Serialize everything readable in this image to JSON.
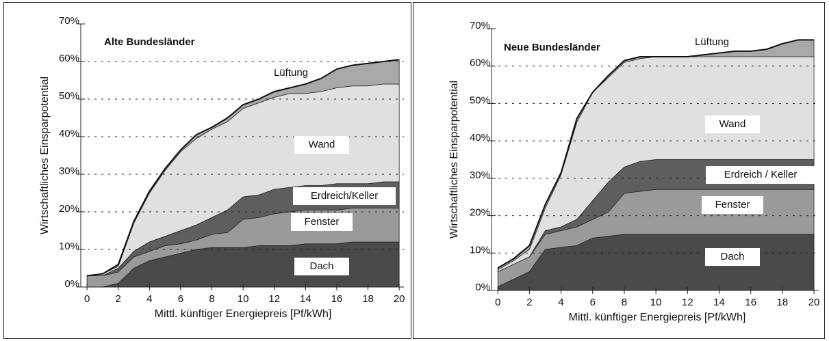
{
  "chart_data": [
    {
      "type": "area",
      "stacked": true,
      "title": "Alte Bundesländer",
      "xlabel": "Mittl. künftiger Energiepreis [Pf/kWh]",
      "ylabel": "Wirtschaftliches Einsparpotential",
      "x": [
        0,
        1,
        2,
        3,
        4,
        5,
        6,
        7,
        8,
        9,
        10,
        11,
        12,
        13,
        14,
        15,
        16,
        17,
        18,
        19,
        20
      ],
      "xlim": [
        -0.4,
        20.3
      ],
      "xticks": [
        0,
        2,
        4,
        6,
        8,
        10,
        12,
        14,
        16,
        18,
        20
      ],
      "ylim": [
        0,
        70
      ],
      "yticks": [
        {
          "value": 0,
          "label": "0%"
        },
        {
          "value": 10,
          "label": "10%"
        },
        {
          "value": 20,
          "label": "20%"
        },
        {
          "value": 30,
          "label": "30%"
        },
        {
          "value": 40,
          "label": "40%"
        },
        {
          "value": 50,
          "label": "50%"
        },
        {
          "value": 60,
          "label": "60%"
        },
        {
          "value": 70,
          "label": "70%"
        }
      ],
      "grid": true,
      "series": [
        {
          "name": "Dach",
          "color": "#4a4a4a",
          "values": [
            0,
            0,
            1,
            5,
            7,
            8,
            9,
            10,
            10.5,
            10.5,
            10.5,
            11,
            11,
            11,
            11.5,
            11.5,
            11.5,
            12,
            12,
            12,
            12
          ]
        },
        {
          "name": "Fenster",
          "color": "#9a9a9a",
          "values": [
            3,
            3,
            3,
            3,
            2.5,
            3,
            2.5,
            2.5,
            3.5,
            4,
            7.5,
            7.5,
            8.5,
            9,
            9,
            9,
            9,
            9,
            9,
            9,
            9
          ]
        },
        {
          "name": "Erdreich/Keller",
          "color": "#5e5e5e",
          "values": [
            0,
            0,
            1,
            1.5,
            2.5,
            2.5,
            3.5,
            4,
            4.5,
            6,
            6,
            6,
            6.5,
            6.5,
            6.5,
            6.5,
            7,
            6.5,
            6.5,
            7,
            7
          ]
        },
        {
          "name": "Wand",
          "color": "#e0e0e0",
          "values": [
            0,
            0.5,
            0.5,
            7.5,
            13,
            17.5,
            21,
            23,
            23.5,
            23.5,
            23.5,
            24.5,
            24.5,
            25,
            24.5,
            25,
            25.5,
            26,
            26,
            26,
            26
          ]
        },
        {
          "name": "Lüftung",
          "color": "#a8a8a8",
          "values": [
            0,
            0,
            0.5,
            0.5,
            0.5,
            0.5,
            0.5,
            1,
            0.5,
            1,
            1,
            1,
            1.5,
            1.5,
            2.5,
            3.5,
            5,
            5.5,
            6,
            6,
            6.5
          ]
        }
      ]
    },
    {
      "type": "area",
      "stacked": true,
      "title": "Neue Bundesländer",
      "xlabel": "Mittl. künftiger Energiepreis [Pf/kWh]",
      "ylabel": "Wirtschaftliches Einsparpotential",
      "x": [
        0,
        1,
        2,
        3,
        4,
        5,
        6,
        7,
        8,
        9,
        10,
        11,
        12,
        13,
        14,
        15,
        16,
        17,
        18,
        19,
        20
      ],
      "xlim": [
        -0.4,
        20.3
      ],
      "xticks": [
        0,
        2,
        4,
        6,
        8,
        10,
        12,
        14,
        16,
        18,
        20
      ],
      "ylim": [
        0,
        70
      ],
      "yticks": [
        {
          "value": 0,
          "label": "0%"
        },
        {
          "value": 10,
          "label": "10%"
        },
        {
          "value": 20,
          "label": "20%"
        },
        {
          "value": 30,
          "label": "30%"
        },
        {
          "value": 40,
          "label": "40%"
        },
        {
          "value": 50,
          "label": "50%"
        },
        {
          "value": 60,
          "label": "60%"
        },
        {
          "value": 70,
          "label": "70%"
        }
      ],
      "grid": true,
      "series": [
        {
          "name": "Dach",
          "color": "#4a4a4a",
          "values": [
            1,
            3,
            5,
            11,
            11.5,
            12,
            14,
            14.5,
            15,
            15,
            15,
            15,
            15,
            15,
            15,
            15,
            15,
            15,
            15,
            15,
            15
          ]
        },
        {
          "name": "Fenster",
          "color": "#9a9a9a",
          "values": [
            4,
            4,
            4,
            4,
            4.5,
            5,
            5,
            6.5,
            11,
            11.5,
            12,
            12,
            12,
            12,
            12,
            12,
            12,
            12,
            12,
            12,
            12
          ]
        },
        {
          "name": "Erdreich / Keller",
          "color": "#5e5e5e",
          "values": [
            0,
            0,
            0,
            1,
            1,
            2,
            5,
            8,
            7,
            8,
            8,
            8,
            8,
            8,
            8,
            8,
            8,
            8,
            8,
            8,
            8
          ]
        },
        {
          "name": "Wand",
          "color": "#e0e0e0",
          "values": [
            0.5,
            1,
            2,
            6,
            14,
            26,
            29,
            28,
            28,
            27.5,
            27.5,
            27.5,
            27.5,
            27.5,
            27.5,
            27.5,
            27.5,
            27.5,
            27.5,
            27.5,
            27.5
          ]
        },
        {
          "name": "Lüftung",
          "color": "#a8a8a8",
          "values": [
            0.5,
            0.5,
            1,
            1,
            0.5,
            1,
            0,
            0.5,
            0.5,
            0.5,
            0,
            0,
            0,
            0.5,
            1,
            1.5,
            1.5,
            2,
            3.5,
            4.5,
            4.5
          ]
        }
      ]
    }
  ]
}
